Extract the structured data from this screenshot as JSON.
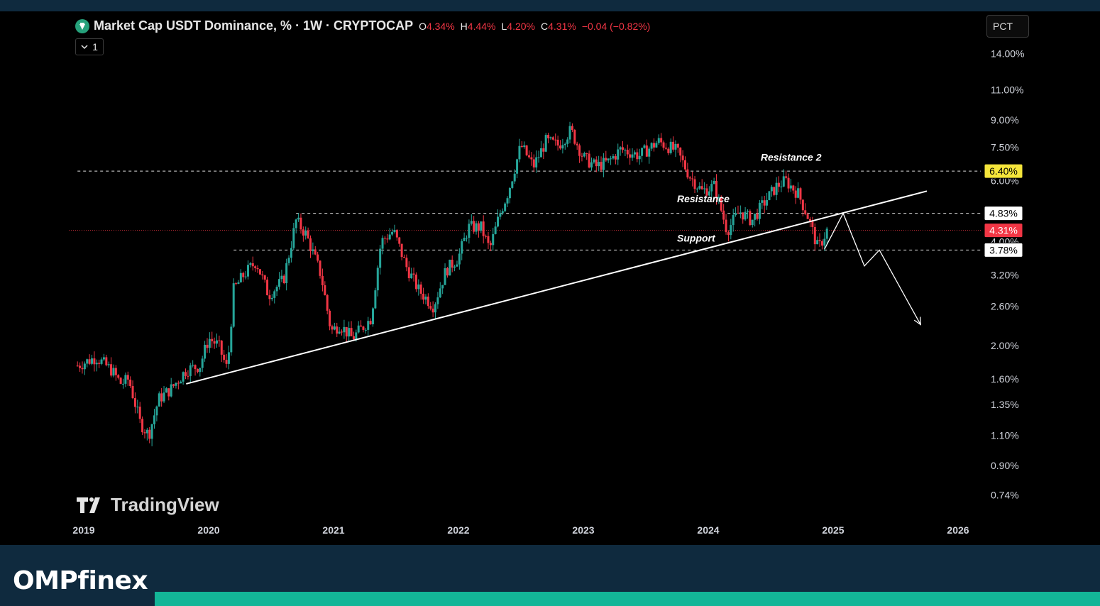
{
  "header": {
    "symbol_title": "Market Cap USDT Dominance, % · 1W · CRYPTOCAP",
    "ohlc": [
      {
        "key": "O",
        "value": "4.34%"
      },
      {
        "key": "H",
        "value": "4.44%"
      },
      {
        "key": "L",
        "value": "4.20%"
      },
      {
        "key": "C",
        "value": "4.31%"
      }
    ],
    "change": "−0.04 (−0.82%)",
    "collapse_label": "1",
    "scale_button": "PCT"
  },
  "watermark": "TradingView",
  "brand": "OMPfinex",
  "colors": {
    "up": "#26a69a",
    "down": "#f23645",
    "background": "#000000",
    "frame": "#0f2a3e",
    "accent_bar": "#13b597",
    "highlight_label": "#f5e53b",
    "last_price_label": "#f23645"
  },
  "chart_data": {
    "type": "candlestick",
    "title": "Market Cap USDT Dominance, % · 1W · CRYPTOCAP",
    "scale": "log",
    "ylim": [
      0.7,
      15
    ],
    "xlim": [
      2019,
      2026.2
    ],
    "x_ticks": [
      "2019",
      "2020",
      "2021",
      "2022",
      "2023",
      "2024",
      "2025",
      "2026"
    ],
    "y_ticks": [
      "14.00%",
      "11.00%",
      "9.00%",
      "7.50%",
      "6.00%",
      "4.00%",
      "3.20%",
      "2.60%",
      "2.00%",
      "1.60%",
      "1.35%",
      "1.10%",
      "0.90%",
      "0.74%"
    ],
    "y_tick_values": [
      14,
      11,
      9,
      7.5,
      6,
      4,
      3.2,
      2.6,
      2,
      1.6,
      1.35,
      1.1,
      0.9,
      0.74
    ],
    "grid": false,
    "price_path": [
      [
        2018.95,
        1.75
      ],
      [
        2019.1,
        1.85
      ],
      [
        2019.22,
        1.7
      ],
      [
        2019.3,
        1.55
      ],
      [
        2019.36,
        1.6
      ],
      [
        2019.45,
        1.2
      ],
      [
        2019.52,
        1.1
      ],
      [
        2019.6,
        1.4
      ],
      [
        2019.7,
        1.5
      ],
      [
        2019.82,
        1.7
      ],
      [
        2019.93,
        1.75
      ],
      [
        2020.0,
        2.1
      ],
      [
        2020.08,
        2.0
      ],
      [
        2020.15,
        1.7
      ],
      [
        2020.2,
        2.9
      ],
      [
        2020.28,
        3.2
      ],
      [
        2020.38,
        3.5
      ],
      [
        2020.48,
        2.8
      ],
      [
        2020.6,
        3.1
      ],
      [
        2020.7,
        4.6
      ],
      [
        2020.78,
        4.2
      ],
      [
        2020.9,
        3.2
      ],
      [
        2020.98,
        2.2
      ],
      [
        2021.05,
        2.3
      ],
      [
        2021.15,
        2.1
      ],
      [
        2021.3,
        2.4
      ],
      [
        2021.38,
        4.0
      ],
      [
        2021.48,
        4.3
      ],
      [
        2021.58,
        3.4
      ],
      [
        2021.68,
        2.9
      ],
      [
        2021.8,
        2.6
      ],
      [
        2021.9,
        3.3
      ],
      [
        2022.0,
        3.6
      ],
      [
        2022.08,
        4.4
      ],
      [
        2022.18,
        4.4
      ],
      [
        2022.25,
        3.8
      ],
      [
        2022.33,
        4.8
      ],
      [
        2022.4,
        5.6
      ],
      [
        2022.5,
        7.6
      ],
      [
        2022.6,
        6.6
      ],
      [
        2022.7,
        7.8
      ],
      [
        2022.8,
        7.6
      ],
      [
        2022.9,
        8.4
      ],
      [
        2023.0,
        7.0
      ],
      [
        2023.1,
        6.6
      ],
      [
        2023.2,
        6.8
      ],
      [
        2023.3,
        7.4
      ],
      [
        2023.45,
        7.1
      ],
      [
        2023.6,
        7.8
      ],
      [
        2023.75,
        7.3
      ],
      [
        2023.85,
        6.2
      ],
      [
        2023.95,
        5.6
      ],
      [
        2024.05,
        5.8
      ],
      [
        2024.15,
        4.3
      ],
      [
        2024.25,
        4.9
      ],
      [
        2024.35,
        4.6
      ],
      [
        2024.45,
        5.2
      ],
      [
        2024.55,
        5.8
      ],
      [
        2024.62,
        6.0
      ],
      [
        2024.72,
        5.5
      ],
      [
        2024.8,
        4.7
      ],
      [
        2024.88,
        3.8
      ],
      [
        2024.95,
        4.31
      ]
    ],
    "last_price": 4.31,
    "price_labels": [
      {
        "text": "6.40%",
        "value": 6.4,
        "style": "highlight"
      },
      {
        "text": "4.83%",
        "value": 4.83,
        "style": "white"
      },
      {
        "text": "4.31%",
        "value": 4.31,
        "style": "last"
      },
      {
        "text": "3.78%",
        "value": 3.78,
        "style": "white"
      }
    ],
    "horizontal_levels": [
      {
        "name": "resistance-2",
        "value": 6.4,
        "from_x": 2018.95,
        "to_x": 2026.2
      },
      {
        "name": "resistance",
        "value": 4.83,
        "from_x": 2020.7,
        "to_x": 2026.2
      },
      {
        "name": "support",
        "value": 3.78,
        "from_x": 2020.2,
        "to_x": 2026.2
      }
    ],
    "annotations": [
      {
        "text": "Resistance 2",
        "x": 2024.42,
        "y": 6.85
      },
      {
        "text": "Resistance",
        "x": 2023.75,
        "y": 5.2
      },
      {
        "text": "Support",
        "x": 2023.75,
        "y": 4.0
      }
    ],
    "trendline": {
      "from": [
        2019.82,
        1.55
      ],
      "to": [
        2025.75,
        5.6
      ]
    },
    "projection": [
      [
        2024.93,
        3.8
      ],
      [
        2025.08,
        4.83
      ],
      [
        2025.25,
        3.4
      ],
      [
        2025.37,
        3.78
      ],
      [
        2025.7,
        2.3
      ]
    ]
  }
}
